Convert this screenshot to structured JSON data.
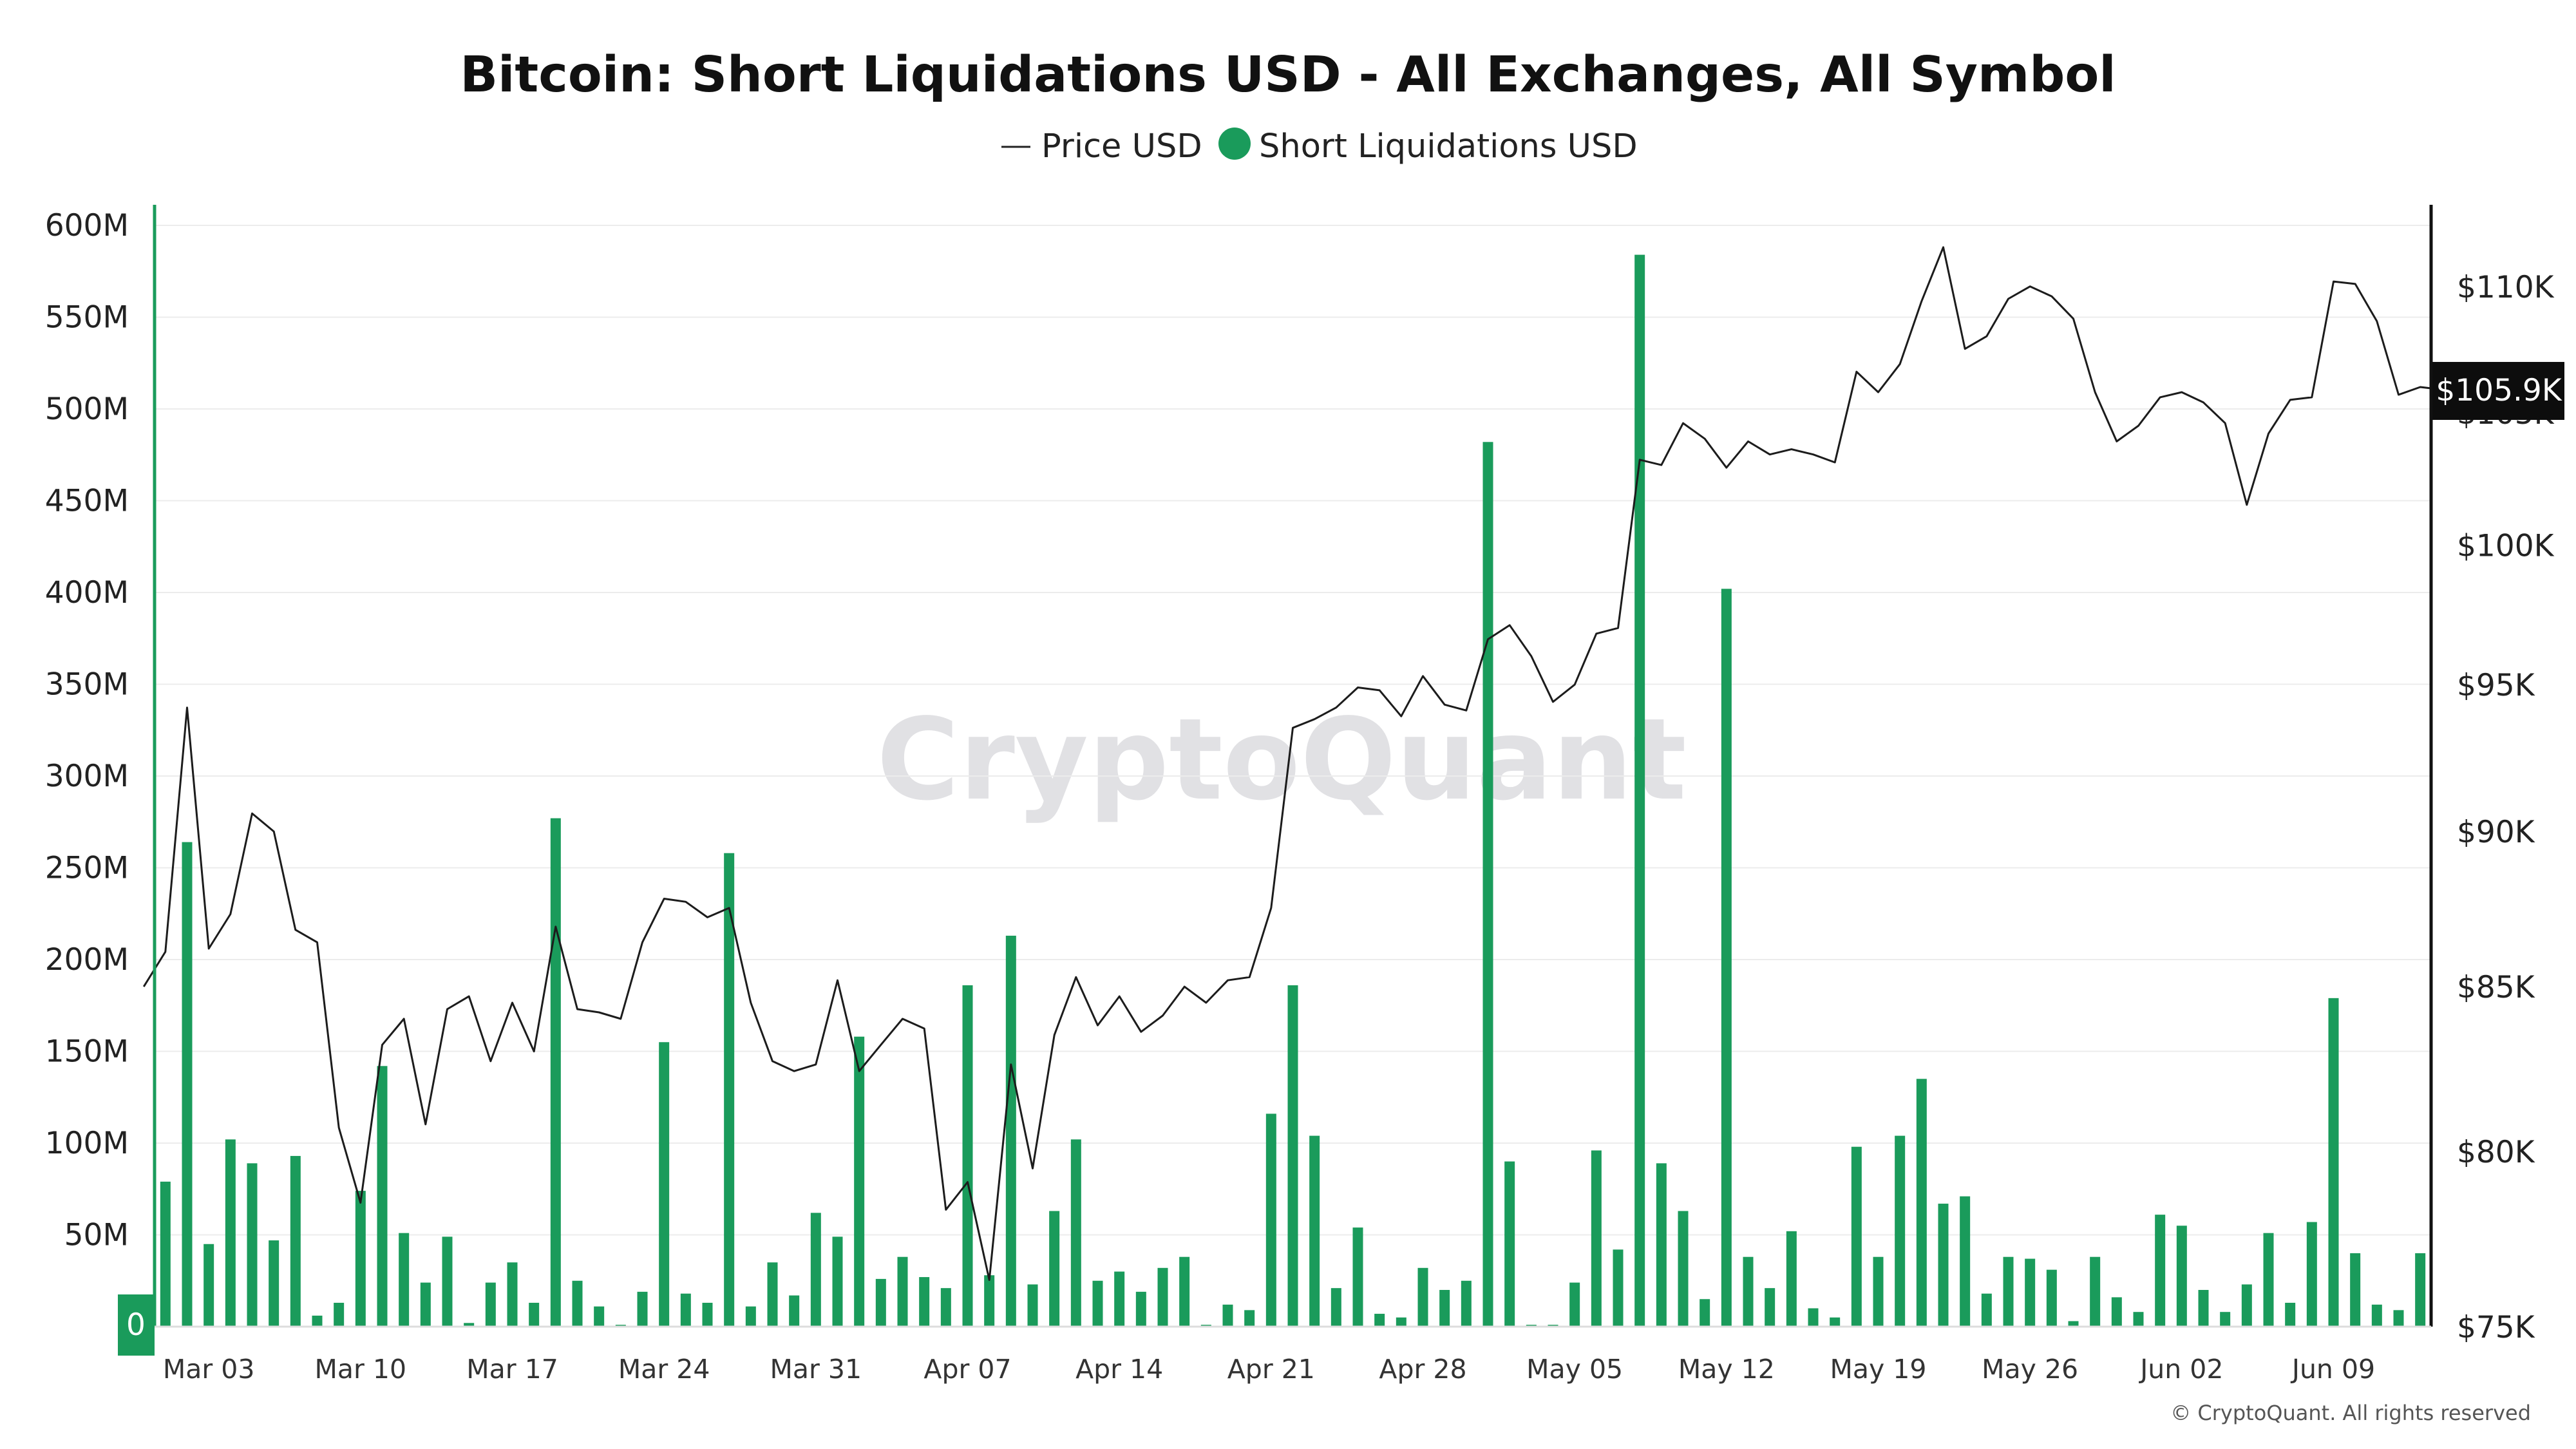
{
  "chart_data": {
    "type": "bar",
    "title": "Bitcoin: Short Liquidations USD - All Exchanges, All Symbol",
    "legend": [
      {
        "label": "Price USD",
        "marker": "line",
        "color": "#222222"
      },
      {
        "label": "Short Liquidations USD",
        "marker": "dot",
        "color": "#1a9b5b"
      }
    ],
    "legend_position": "top-center",
    "grid": true,
    "x_tick_labels": [
      "Mar 03",
      "Mar 10",
      "Mar 17",
      "Mar 24",
      "Mar 31",
      "Apr 07",
      "Apr 14",
      "Apr 21",
      "Apr 28",
      "May 05",
      "May 12",
      "May 19",
      "May 26",
      "Jun 02",
      "Jun 09"
    ],
    "x_tick_day_index": [
      2,
      9,
      16,
      23,
      30,
      37,
      44,
      51,
      58,
      65,
      72,
      79,
      86,
      93,
      100
    ],
    "x_range_days": [
      -0.5,
      104.5
    ],
    "left_axis": {
      "ylim": [
        0,
        600000000
      ],
      "ticks": [
        "0",
        "50M",
        "100M",
        "150M",
        "200M",
        "250M",
        "300M",
        "350M",
        "400M",
        "450M",
        "500M",
        "550M",
        "600M"
      ]
    },
    "right_axis": {
      "scale": "log",
      "ylim": [
        75000,
        112500
      ],
      "ticks": [
        "$75K",
        "$80K",
        "$85K",
        "$90K",
        "$95K",
        "$100K",
        "$105K",
        "$110K"
      ],
      "tick_values": [
        75000,
        80000,
        85000,
        90000,
        95000,
        100000,
        105000,
        110000
      ]
    },
    "zero_badge": "0",
    "last_value_label": "$105.9K",
    "series": [
      {
        "name": "Short Liquidations USD",
        "color": "#1a9b5b",
        "axis": "left",
        "start": "Mar 01",
        "values": [
          79000000,
          264000000,
          45000000,
          102000000,
          89000000,
          47000000,
          93000000,
          6000000,
          13000000,
          74000000,
          142000000,
          51000000,
          24000000,
          49000000,
          2000000,
          24000000,
          35000000,
          13000000,
          277000000,
          25000000,
          11000000,
          1000000,
          19000000,
          155000000,
          18000000,
          13000000,
          258000000,
          11000000,
          35000000,
          17000000,
          62000000,
          49000000,
          158000000,
          26000000,
          38000000,
          27000000,
          21000000,
          186000000,
          28000000,
          213000000,
          23000000,
          63000000,
          102000000,
          25000000,
          30000000,
          19000000,
          32000000,
          38000000,
          1000000,
          12000000,
          9000000,
          116000000,
          186000000,
          104000000,
          21000000,
          54000000,
          7000000,
          5000000,
          32000000,
          20000000,
          25000000,
          482000000,
          90000000,
          1000000,
          1000000,
          24000000,
          96000000,
          42000000,
          584000000,
          89000000,
          63000000,
          15000000,
          402000000,
          38000000,
          21000000,
          52000000,
          10000000,
          5000000,
          98000000,
          38000000,
          104000000,
          135000000,
          67000000,
          71000000,
          18000000,
          38000000,
          37000000,
          31000000,
          3000000,
          38000000,
          16000000,
          8000000,
          61000000,
          55000000,
          20000000,
          8000000,
          23000000,
          51000000,
          13000000,
          57000000,
          179000000,
          40000000,
          12000000,
          9000000,
          40000000
        ]
      },
      {
        "name": "Price USD",
        "color": "#222222",
        "axis": "right",
        "start": "Feb 28",
        "values": [
          85000,
          86100,
          94200,
          86200,
          87300,
          90600,
          90000,
          86800,
          86400,
          80700,
          78500,
          83200,
          84000,
          80800,
          84300,
          84700,
          82700,
          84500,
          83000,
          86900,
          84300,
          84200,
          84000,
          86400,
          87800,
          87700,
          87200,
          87500,
          84500,
          82700,
          82400,
          82600,
          85200,
          82400,
          83200,
          84000,
          83700,
          78300,
          79100,
          76300,
          82600,
          79500,
          83500,
          85300,
          83800,
          84700,
          83600,
          84100,
          85000,
          84500,
          85200,
          85300,
          87500,
          93500,
          93800,
          94200,
          94900,
          94800,
          93900,
          95300,
          94300,
          94100,
          96600,
          97100,
          96000,
          94400,
          95000,
          96800,
          97000,
          103200,
          103000,
          104600,
          104000,
          102900,
          103900,
          103400,
          103600,
          103400,
          103100,
          106600,
          105800,
          106900,
          109400,
          111600,
          107500,
          108000,
          109500,
          110000,
          109600,
          108700,
          105800,
          103900,
          104500,
          105600,
          105800,
          105400,
          104600,
          101500,
          104200,
          105500,
          105600,
          110200,
          110100,
          108600,
          105700,
          106000,
          105900
        ]
      }
    ]
  },
  "copyright": "© CryptoQuant. All rights reserved",
  "watermark": "CryptoQuant"
}
